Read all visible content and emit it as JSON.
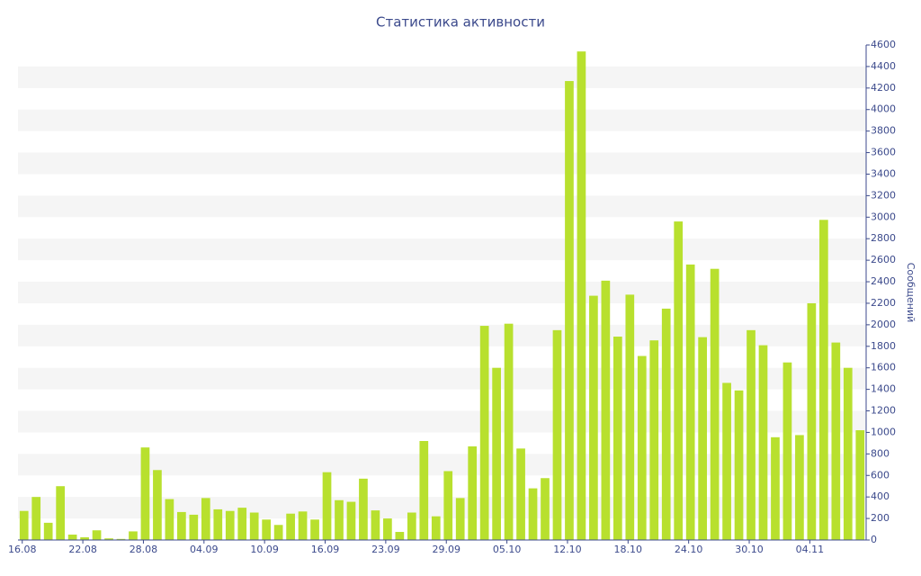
{
  "chart_data": {
    "type": "bar",
    "title": "Статистика активности",
    "y_label": "Сообщений",
    "categories": [
      "16.08",
      null,
      null,
      null,
      null,
      "22.08",
      null,
      null,
      null,
      null,
      "28.08",
      null,
      null,
      null,
      null,
      "04.09",
      null,
      null,
      null,
      null,
      "10.09",
      null,
      null,
      null,
      null,
      "16.09",
      null,
      null,
      null,
      null,
      "23.09",
      null,
      null,
      null,
      null,
      "29.09",
      null,
      null,
      null,
      null,
      "05.10",
      null,
      null,
      null,
      null,
      "12.10",
      null,
      null,
      null,
      null,
      "18.10",
      null,
      null,
      null,
      null,
      "24.10",
      null,
      null,
      null,
      null,
      "30.10",
      null,
      null,
      null,
      null,
      "04.11",
      null,
      null,
      null,
      null
    ],
    "values": [
      270,
      400,
      160,
      500,
      50,
      25,
      90,
      15,
      10,
      80,
      860,
      650,
      380,
      260,
      235,
      390,
      285,
      270,
      300,
      255,
      190,
      140,
      245,
      265,
      190,
      630,
      370,
      355,
      570,
      275,
      200,
      75,
      255,
      920,
      220,
      640,
      390,
      870,
      1990,
      1600,
      2010,
      850,
      480,
      575,
      1950,
      4265,
      4540,
      2270,
      2410,
      1890,
      2280,
      1710,
      1855,
      2150,
      2960,
      2560,
      1885,
      2520,
      1460,
      1390,
      1950,
      1810,
      955,
      1650,
      975,
      2200,
      2975,
      1835,
      1600,
      1020
    ],
    "color": "#b8e02e",
    "ylim": [
      0,
      4600
    ],
    "yticks": [
      0,
      200,
      400,
      600,
      800,
      1000,
      1200,
      1400,
      1600,
      1800,
      2000,
      2200,
      2400,
      2600,
      2800,
      3000,
      3200,
      3400,
      3600,
      3800,
      4000,
      4200,
      4400,
      4600
    ],
    "y_axis_side": "right",
    "grid": "bands"
  }
}
